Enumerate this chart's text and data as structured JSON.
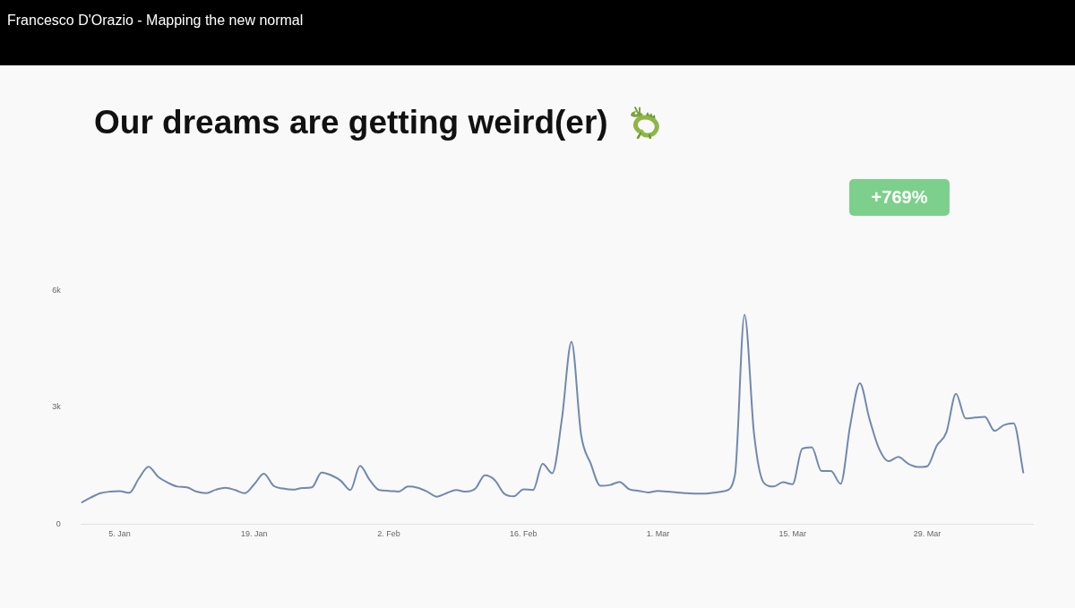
{
  "chart_data": {
    "type": "line",
    "title": "Our dreams are getting weird(er)",
    "annotations": [
      "Francesco D'Orazio - Mapping the new normal",
      "+769%"
    ],
    "x": [
      "--01-01",
      "--01-02",
      "--01-03",
      "--01-04",
      "--01-05",
      "--01-06",
      "--01-07",
      "--01-08",
      "--01-09",
      "--01-10",
      "--01-11",
      "--01-12",
      "--01-13",
      "--01-14",
      "--01-15",
      "--01-16",
      "--01-17",
      "--01-18",
      "--01-19",
      "--01-20",
      "--01-21",
      "--01-22",
      "--01-23",
      "--01-24",
      "--01-25",
      "--01-26",
      "--01-27",
      "--01-28",
      "--01-29",
      "--01-30",
      "--01-31",
      "--02-01",
      "--02-02",
      "--02-03",
      "--02-04",
      "--02-05",
      "--02-06",
      "--02-07",
      "--02-08",
      "--02-09",
      "--02-10",
      "--02-11",
      "--02-12",
      "--02-13",
      "--02-14",
      "--02-15",
      "--02-16",
      "--02-17",
      "--02-18",
      "--02-19",
      "--02-20",
      "--02-21",
      "--02-22",
      "--02-23",
      "--02-24",
      "--02-25",
      "--02-26",
      "--02-27",
      "--02-28",
      "--02-29",
      "--03-01",
      "--03-02",
      "--03-03",
      "--03-04",
      "--03-05",
      "--03-06",
      "--03-07",
      "--03-08",
      "--03-09",
      "--03-10",
      "--03-11",
      "--03-12",
      "--03-13",
      "--03-14",
      "--03-15",
      "--03-16",
      "--03-17",
      "--03-18",
      "--03-19",
      "--03-20",
      "--03-21",
      "--03-22",
      "--03-23",
      "--03-24",
      "--03-25",
      "--03-26",
      "--03-27",
      "--03-28",
      "--03-29",
      "--03-30",
      "--03-31",
      "--04-01",
      "--04-02",
      "--04-03",
      "--04-04",
      "--04-05",
      "--04-06",
      "--04-07",
      "--04-08"
    ],
    "values": [
      560,
      690,
      800,
      840,
      850,
      810,
      1180,
      1480,
      1220,
      1070,
      970,
      950,
      840,
      800,
      890,
      940,
      880,
      800,
      1030,
      1300,
      990,
      920,
      890,
      930,
      950,
      1330,
      1260,
      1120,
      880,
      1500,
      1140,
      880,
      860,
      840,
      970,
      940,
      840,
      710,
      800,
      880,
      840,
      920,
      1260,
      1140,
      790,
      720,
      900,
      880,
      1550,
      1310,
      2700,
      4680,
      2300,
      1560,
      990,
      1010,
      1090,
      900,
      860,
      820,
      860,
      840,
      820,
      800,
      790,
      790,
      820,
      860,
      1260,
      5380,
      2300,
      1070,
      970,
      1080,
      1030,
      1940,
      1980,
      1370,
      1370,
      1040,
      2550,
      3620,
      2700,
      1940,
      1620,
      1730,
      1560,
      1470,
      1490,
      2020,
      2360,
      3350,
      2720,
      2740,
      2760,
      2400,
      2550,
      2590,
      1330
    ],
    "color": "#7189ad",
    "marker": "none",
    "line_style": "solid",
    "xlim": [
      "--01-01",
      "--04-09"
    ],
    "xticks": [
      {
        "value": "--01-05",
        "label": "5. Jan"
      },
      {
        "value": "--01-19",
        "label": "19. Jan"
      },
      {
        "value": "--02-02",
        "label": "2. Feb"
      },
      {
        "value": "--02-16",
        "label": "16. Feb"
      },
      {
        "value": "--03-01",
        "label": "1. Mar"
      },
      {
        "value": "--03-15",
        "label": "15. Mar"
      },
      {
        "value": "--03-29",
        "label": "29. Mar"
      }
    ],
    "ylim": [
      0,
      6000
    ],
    "yticks": [
      0,
      {
        "value": 3000,
        "label": "3k"
      },
      {
        "value": 6000,
        "label": "6k"
      }
    ]
  }
}
